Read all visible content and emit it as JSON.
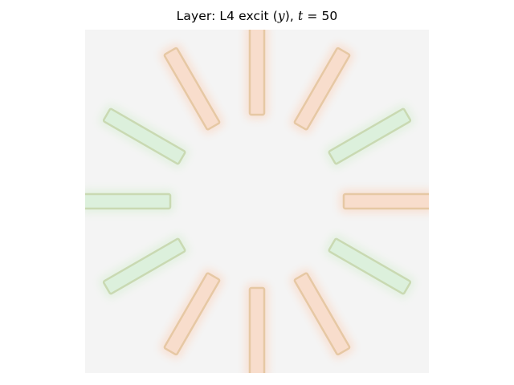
{
  "figure": {
    "title_prefix": "Layer: L4 excit (",
    "title_var": "y",
    "title_mid": "), ",
    "title_t": "t",
    "title_eq": " = 50"
  },
  "colors": {
    "background": "#f4f4f4",
    "green_fill": "#dcf0dc",
    "green_edge": "#c9d9b2",
    "orange_fill": "#f8ddcc",
    "orange_edge": "#e6c8a4",
    "halo_orange": "#f8e2d6",
    "halo_green": "#e4f1e2"
  },
  "image": {
    "description_shape": "radial-bars",
    "bars": [
      {
        "angle": 0,
        "tone": "orange"
      },
      {
        "angle": 30,
        "tone": "green"
      },
      {
        "angle": 60,
        "tone": "orange"
      },
      {
        "angle": 90,
        "tone": "orange"
      },
      {
        "angle": 120,
        "tone": "orange"
      },
      {
        "angle": 150,
        "tone": "green"
      },
      {
        "angle": 180,
        "tone": "green"
      },
      {
        "angle": 210,
        "tone": "green"
      },
      {
        "angle": 240,
        "tone": "orange"
      },
      {
        "angle": 270,
        "tone": "orange"
      },
      {
        "angle": 300,
        "tone": "orange"
      },
      {
        "angle": 330,
        "tone": "green"
      }
    ]
  }
}
